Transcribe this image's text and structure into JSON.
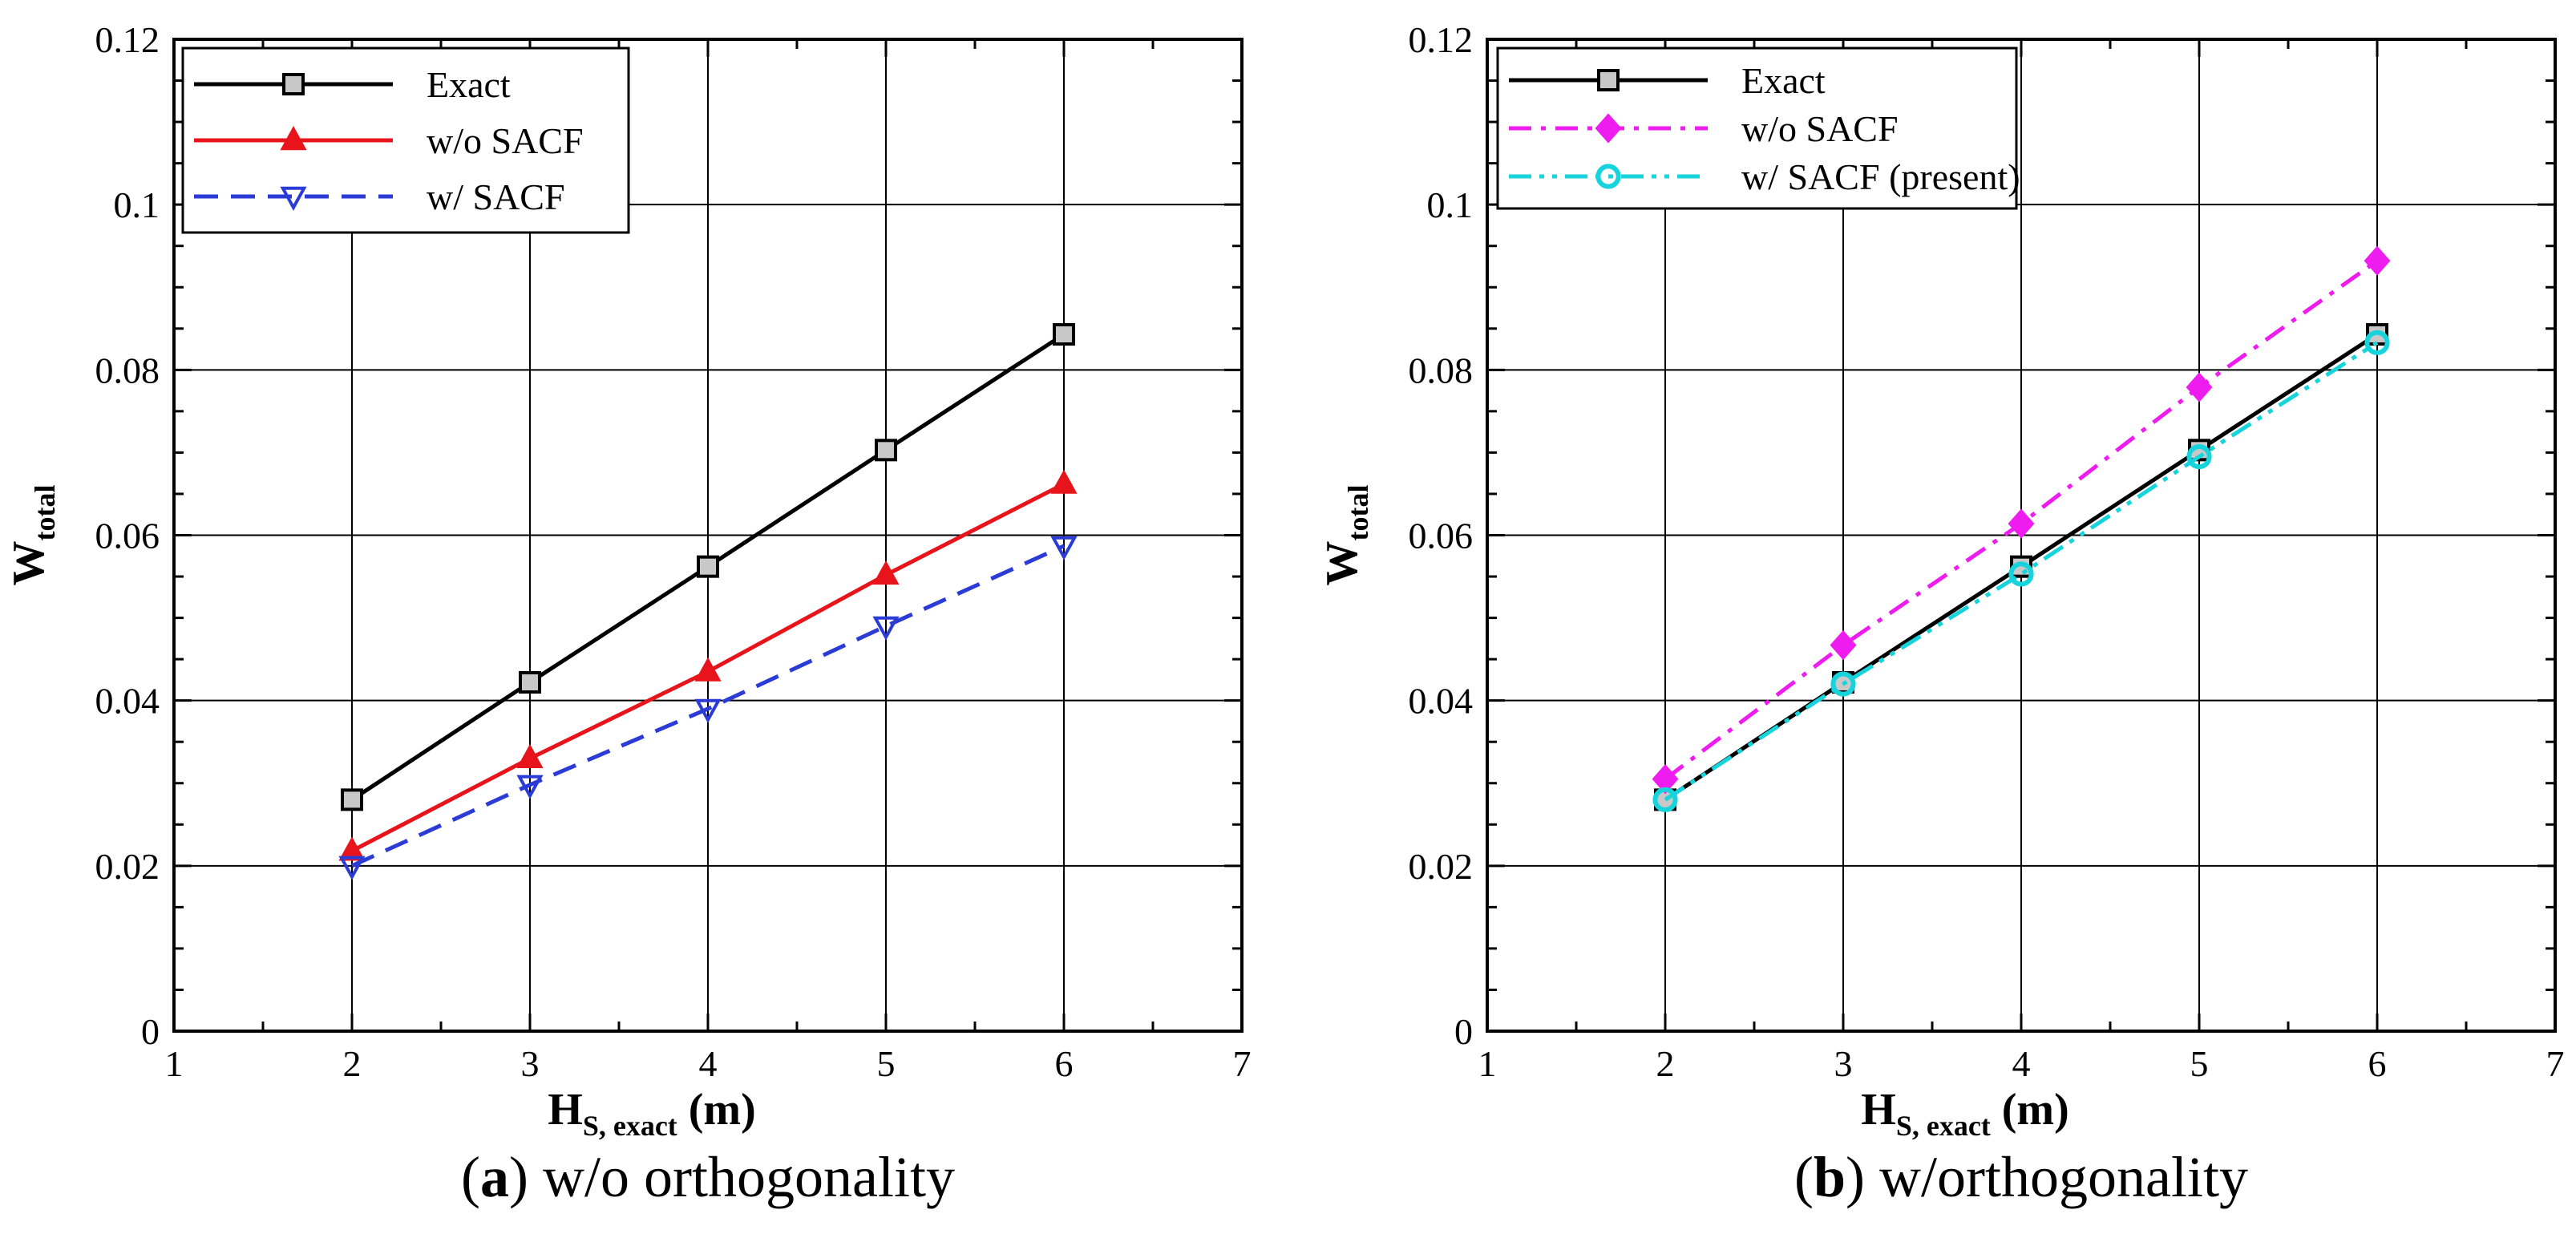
{
  "chart_data": [
    {
      "type": "line",
      "caption_letter": "a",
      "caption_text": "w/o orthogonality",
      "xlabel_main": "H",
      "xlabel_sub": "S, exact",
      "xlabel_unit": "(m)",
      "ylabel_main": "W",
      "ylabel_sub": "total",
      "xlim": [
        1,
        7
      ],
      "ylim": [
        0,
        0.12
      ],
      "grid": true,
      "legend_position": "top-left",
      "x_ticks": [
        1,
        2,
        3,
        4,
        5,
        6,
        7
      ],
      "x_tick_labels": [
        "1",
        "2",
        "3",
        "4",
        "5",
        "6",
        "7"
      ],
      "y_ticks": [
        0,
        0.02,
        0.04,
        0.06,
        0.08,
        0.1,
        0.12
      ],
      "y_tick_labels": [
        "0",
        "0.02",
        "0.04",
        "0.06",
        "0.08",
        "0.1",
        "0.12"
      ],
      "x": [
        2,
        3,
        4,
        5,
        6
      ],
      "series": [
        {
          "name": "Exact",
          "values": [
            0.028,
            0.0422,
            0.0562,
            0.0703,
            0.0843
          ],
          "color": "#000000",
          "dash": "solid",
          "marker": "square",
          "marker_fill": "#c8c8c8",
          "marker_stroke": "#000000"
        },
        {
          "name": "w/o SACF",
          "values": [
            0.0218,
            0.033,
            0.0435,
            0.0552,
            0.0662
          ],
          "color": "#e8141b",
          "dash": "solid",
          "marker": "triangle-up",
          "marker_fill": "#e8141b",
          "marker_stroke": "#e8141b"
        },
        {
          "name": "w/ SACF",
          "values": [
            0.02,
            0.0298,
            0.039,
            0.049,
            0.0587
          ],
          "color": "#2b3bd6",
          "dash": "dashed",
          "marker": "triangle-down",
          "marker_fill": "none",
          "marker_stroke": "#2b3bd6"
        }
      ]
    },
    {
      "type": "line",
      "caption_letter": "b",
      "caption_text": "w/orthogonality",
      "xlabel_main": "H",
      "xlabel_sub": "S, exact",
      "xlabel_unit": "(m)",
      "ylabel_main": "W",
      "ylabel_sub": "total",
      "xlim": [
        1,
        7
      ],
      "ylim": [
        0,
        0.12
      ],
      "grid": true,
      "legend_position": "top-left",
      "x_ticks": [
        1,
        2,
        3,
        4,
        5,
        6,
        7
      ],
      "x_tick_labels": [
        "1",
        "2",
        "3",
        "4",
        "5",
        "6",
        "7"
      ],
      "y_ticks": [
        0,
        0.02,
        0.04,
        0.06,
        0.08,
        0.1,
        0.12
      ],
      "y_tick_labels": [
        "0",
        "0.02",
        "0.04",
        "0.06",
        "0.08",
        "0.1",
        "0.12"
      ],
      "x": [
        2,
        3,
        4,
        5,
        6
      ],
      "series": [
        {
          "name": "Exact",
          "values": [
            0.028,
            0.0422,
            0.0562,
            0.0703,
            0.0843
          ],
          "color": "#000000",
          "dash": "solid",
          "marker": "square",
          "marker_fill": "#c8c8c8",
          "marker_stroke": "#000000"
        },
        {
          "name": "w/o SACF",
          "values": [
            0.0305,
            0.0467,
            0.0614,
            0.0779,
            0.0932
          ],
          "color": "#ee1cee",
          "dash": "dashdot",
          "marker": "diamond",
          "marker_fill": "#ee1cee",
          "marker_stroke": "#ee1cee"
        },
        {
          "name": "w/ SACF (present)",
          "values": [
            0.028,
            0.042,
            0.0553,
            0.0695,
            0.0833
          ],
          "color": "#17d3dc",
          "dash": "dashdotdot",
          "marker": "circle",
          "marker_fill": "none",
          "marker_stroke": "#17d3dc"
        }
      ]
    }
  ]
}
